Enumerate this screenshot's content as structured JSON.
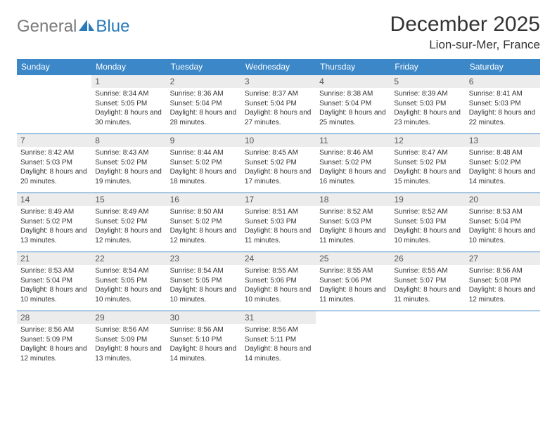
{
  "brand": {
    "gray": "General",
    "blue": "Blue"
  },
  "title": "December 2025",
  "location": "Lion-sur-Mer, France",
  "colors": {
    "header_bg": "#3b87c8",
    "header_text": "#ffffff",
    "daynum_bg": "#ececec",
    "border": "#3b87c8",
    "logo_gray": "#7a7a7a",
    "logo_blue": "#2a7ab9",
    "text": "#333333"
  },
  "weekdays": [
    "Sunday",
    "Monday",
    "Tuesday",
    "Wednesday",
    "Thursday",
    "Friday",
    "Saturday"
  ],
  "cells": [
    {
      "n": "",
      "sr": "",
      "ss": "",
      "dl": ""
    },
    {
      "n": "1",
      "sr": "Sunrise: 8:34 AM",
      "ss": "Sunset: 5:05 PM",
      "dl": "Daylight: 8 hours and 30 minutes."
    },
    {
      "n": "2",
      "sr": "Sunrise: 8:36 AM",
      "ss": "Sunset: 5:04 PM",
      "dl": "Daylight: 8 hours and 28 minutes."
    },
    {
      "n": "3",
      "sr": "Sunrise: 8:37 AM",
      "ss": "Sunset: 5:04 PM",
      "dl": "Daylight: 8 hours and 27 minutes."
    },
    {
      "n": "4",
      "sr": "Sunrise: 8:38 AM",
      "ss": "Sunset: 5:04 PM",
      "dl": "Daylight: 8 hours and 25 minutes."
    },
    {
      "n": "5",
      "sr": "Sunrise: 8:39 AM",
      "ss": "Sunset: 5:03 PM",
      "dl": "Daylight: 8 hours and 23 minutes."
    },
    {
      "n": "6",
      "sr": "Sunrise: 8:41 AM",
      "ss": "Sunset: 5:03 PM",
      "dl": "Daylight: 8 hours and 22 minutes."
    },
    {
      "n": "7",
      "sr": "Sunrise: 8:42 AM",
      "ss": "Sunset: 5:03 PM",
      "dl": "Daylight: 8 hours and 20 minutes."
    },
    {
      "n": "8",
      "sr": "Sunrise: 8:43 AM",
      "ss": "Sunset: 5:02 PM",
      "dl": "Daylight: 8 hours and 19 minutes."
    },
    {
      "n": "9",
      "sr": "Sunrise: 8:44 AM",
      "ss": "Sunset: 5:02 PM",
      "dl": "Daylight: 8 hours and 18 minutes."
    },
    {
      "n": "10",
      "sr": "Sunrise: 8:45 AM",
      "ss": "Sunset: 5:02 PM",
      "dl": "Daylight: 8 hours and 17 minutes."
    },
    {
      "n": "11",
      "sr": "Sunrise: 8:46 AM",
      "ss": "Sunset: 5:02 PM",
      "dl": "Daylight: 8 hours and 16 minutes."
    },
    {
      "n": "12",
      "sr": "Sunrise: 8:47 AM",
      "ss": "Sunset: 5:02 PM",
      "dl": "Daylight: 8 hours and 15 minutes."
    },
    {
      "n": "13",
      "sr": "Sunrise: 8:48 AM",
      "ss": "Sunset: 5:02 PM",
      "dl": "Daylight: 8 hours and 14 minutes."
    },
    {
      "n": "14",
      "sr": "Sunrise: 8:49 AM",
      "ss": "Sunset: 5:02 PM",
      "dl": "Daylight: 8 hours and 13 minutes."
    },
    {
      "n": "15",
      "sr": "Sunrise: 8:49 AM",
      "ss": "Sunset: 5:02 PM",
      "dl": "Daylight: 8 hours and 12 minutes."
    },
    {
      "n": "16",
      "sr": "Sunrise: 8:50 AM",
      "ss": "Sunset: 5:02 PM",
      "dl": "Daylight: 8 hours and 12 minutes."
    },
    {
      "n": "17",
      "sr": "Sunrise: 8:51 AM",
      "ss": "Sunset: 5:03 PM",
      "dl": "Daylight: 8 hours and 11 minutes."
    },
    {
      "n": "18",
      "sr": "Sunrise: 8:52 AM",
      "ss": "Sunset: 5:03 PM",
      "dl": "Daylight: 8 hours and 11 minutes."
    },
    {
      "n": "19",
      "sr": "Sunrise: 8:52 AM",
      "ss": "Sunset: 5:03 PM",
      "dl": "Daylight: 8 hours and 10 minutes."
    },
    {
      "n": "20",
      "sr": "Sunrise: 8:53 AM",
      "ss": "Sunset: 5:04 PM",
      "dl": "Daylight: 8 hours and 10 minutes."
    },
    {
      "n": "21",
      "sr": "Sunrise: 8:53 AM",
      "ss": "Sunset: 5:04 PM",
      "dl": "Daylight: 8 hours and 10 minutes."
    },
    {
      "n": "22",
      "sr": "Sunrise: 8:54 AM",
      "ss": "Sunset: 5:05 PM",
      "dl": "Daylight: 8 hours and 10 minutes."
    },
    {
      "n": "23",
      "sr": "Sunrise: 8:54 AM",
      "ss": "Sunset: 5:05 PM",
      "dl": "Daylight: 8 hours and 10 minutes."
    },
    {
      "n": "24",
      "sr": "Sunrise: 8:55 AM",
      "ss": "Sunset: 5:06 PM",
      "dl": "Daylight: 8 hours and 10 minutes."
    },
    {
      "n": "25",
      "sr": "Sunrise: 8:55 AM",
      "ss": "Sunset: 5:06 PM",
      "dl": "Daylight: 8 hours and 11 minutes."
    },
    {
      "n": "26",
      "sr": "Sunrise: 8:55 AM",
      "ss": "Sunset: 5:07 PM",
      "dl": "Daylight: 8 hours and 11 minutes."
    },
    {
      "n": "27",
      "sr": "Sunrise: 8:56 AM",
      "ss": "Sunset: 5:08 PM",
      "dl": "Daylight: 8 hours and 12 minutes."
    },
    {
      "n": "28",
      "sr": "Sunrise: 8:56 AM",
      "ss": "Sunset: 5:09 PM",
      "dl": "Daylight: 8 hours and 12 minutes."
    },
    {
      "n": "29",
      "sr": "Sunrise: 8:56 AM",
      "ss": "Sunset: 5:09 PM",
      "dl": "Daylight: 8 hours and 13 minutes."
    },
    {
      "n": "30",
      "sr": "Sunrise: 8:56 AM",
      "ss": "Sunset: 5:10 PM",
      "dl": "Daylight: 8 hours and 14 minutes."
    },
    {
      "n": "31",
      "sr": "Sunrise: 8:56 AM",
      "ss": "Sunset: 5:11 PM",
      "dl": "Daylight: 8 hours and 14 minutes."
    },
    {
      "n": "",
      "sr": "",
      "ss": "",
      "dl": ""
    },
    {
      "n": "",
      "sr": "",
      "ss": "",
      "dl": ""
    },
    {
      "n": "",
      "sr": "",
      "ss": "",
      "dl": ""
    }
  ]
}
